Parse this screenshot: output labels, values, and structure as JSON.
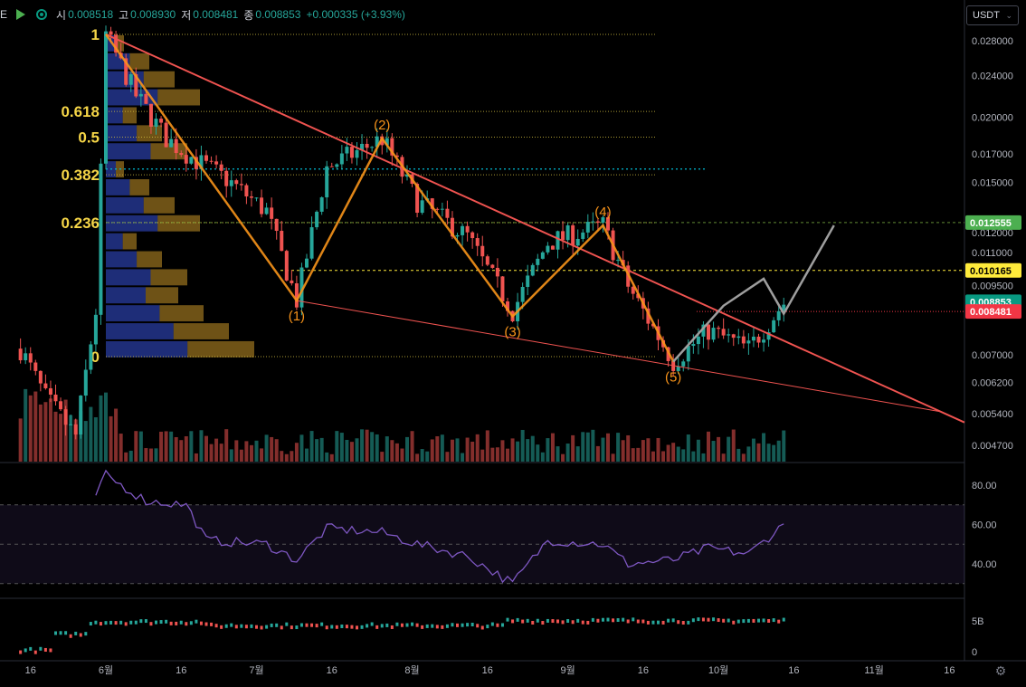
{
  "ohlc": {
    "ticker_fragment": "E",
    "open_label": "시",
    "open": "0.008518",
    "high_label": "고",
    "high": "0.008930",
    "low_label": "저",
    "low": "0.008481",
    "close_label": "종",
    "close": "0.008853",
    "change": "+0.000335 (+3.93%)"
  },
  "currency_selector": "USDT",
  "price_axis": {
    "labels": [
      "0.028000",
      "0.024000",
      "0.020000",
      "0.017000",
      "0.015000",
      "0.012000",
      "0.011000",
      "0.009500",
      "0.007000",
      "0.006200",
      "0.005400",
      "0.004700"
    ],
    "values": [
      0.028,
      0.024,
      0.02,
      0.017,
      0.015,
      0.012,
      0.011,
      0.0095,
      0.007,
      0.0062,
      0.0054,
      0.0047
    ],
    "scale": "log",
    "badges": [
      {
        "label": "0.012555",
        "value": 0.012555,
        "color": "#4caf50",
        "text_color": "#ffffff"
      },
      {
        "label": "0.010165",
        "value": 0.010165,
        "color": "#ffeb3b",
        "text_color": "#000000"
      },
      {
        "label": "0.008853",
        "value": 0.008853,
        "color": "#089981",
        "text_color": "#ffffff"
      },
      {
        "label": "0.008481",
        "value": 0.008481,
        "color": "#f23645",
        "text_color": "#ffffff"
      }
    ]
  },
  "fib_levels": [
    {
      "label": "1",
      "value": 0.0288
    },
    {
      "label": "0.618",
      "value": 0.0205
    },
    {
      "label": "0.5",
      "value": 0.0183
    },
    {
      "label": "0.382",
      "value": 0.0155
    },
    {
      "label": "0.236",
      "value": 0.01255
    },
    {
      "label": "0",
      "value": 0.00695
    }
  ],
  "wave_labels": [
    {
      "label": "(1)",
      "value": 0.0089,
      "day": 38
    },
    {
      "label": "(2)",
      "value": 0.0182,
      "day": 55
    },
    {
      "label": "(3)",
      "value": 0.0083,
      "day": 81
    },
    {
      "label": "(4)",
      "value": 0.0124,
      "day": 99
    },
    {
      "label": "(5)",
      "value": 0.0068,
      "day": 113
    }
  ],
  "time_axis": {
    "labels": [
      "16",
      "6월",
      "16",
      "7월",
      "16",
      "8월",
      "16",
      "9월",
      "16",
      "10월",
      "16",
      "11월",
      "16"
    ],
    "days": [
      -15,
      0,
      15,
      30,
      45,
      61,
      76,
      92,
      107,
      122,
      137,
      153,
      168
    ]
  },
  "rsi_axis": {
    "labels": [
      "80.00",
      "60.00",
      "40.00"
    ],
    "values": [
      80,
      60,
      40
    ],
    "band": [
      30,
      70
    ],
    "mid": 50
  },
  "volume_axis": {
    "labels": [
      "5B",
      "0"
    ],
    "values": [
      5,
      0
    ]
  },
  "colors": {
    "up": "#26a69a",
    "down": "#ef5350",
    "wave": "#f7931a",
    "trendline": "#ef5350",
    "projection": "#9e9e9e",
    "rsi": "#7e57c2",
    "fib_text": "#f5d547"
  }
}
